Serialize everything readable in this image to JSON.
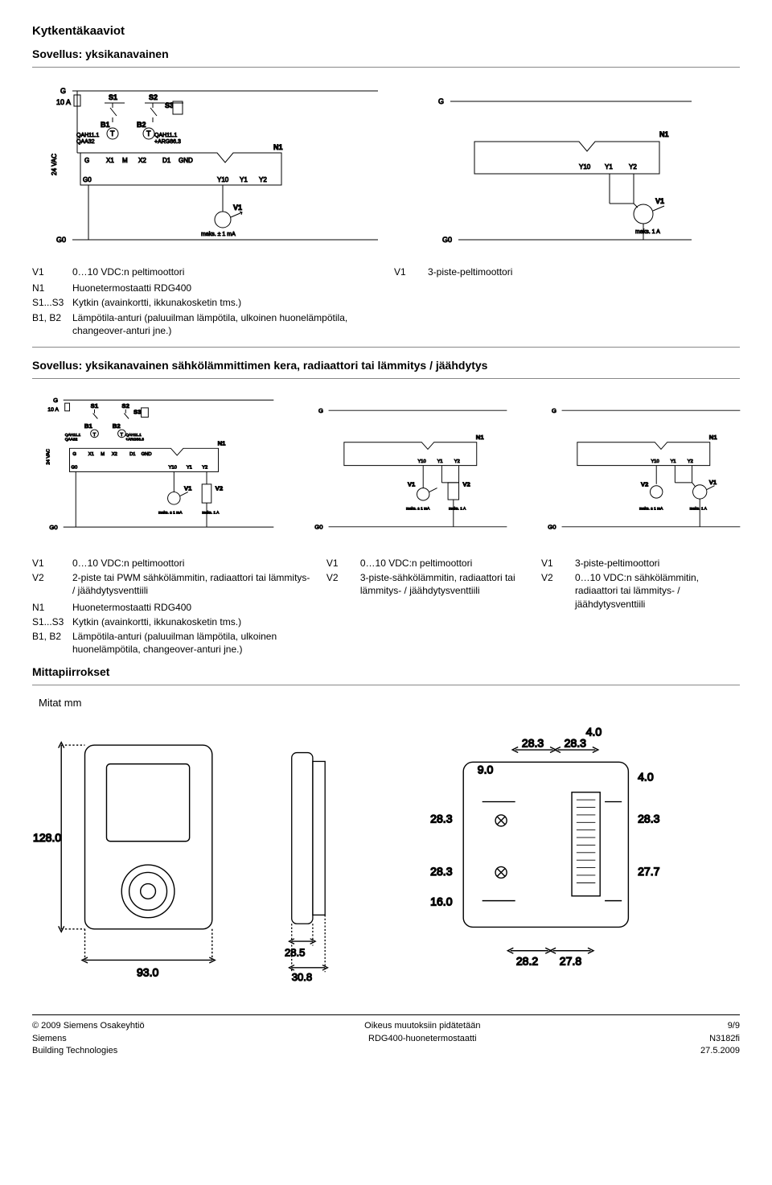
{
  "page": {
    "title": "Kytkentäkaaviot",
    "app1_title": "Sovellus: yksikanavainen",
    "app2_title": "Sovellus: yksikanavainen sähkölämmittimen kera, radiaattori tai lämmitys / jäähdytys",
    "dimensions_title": "Mittapiirrokset",
    "dimensions_sub": "Mitat mm"
  },
  "schematic_labels": {
    "G": "G",
    "G0": "G0",
    "S1": "S1",
    "S2": "S2",
    "S3": "S3",
    "B1": "B1",
    "B2": "B2",
    "N1": "N1",
    "T": "T",
    "QAH": "QAH11.1",
    "QAA": "QAA32",
    "ARG": "+ARG86.3",
    "X1": "X1",
    "X2": "X2",
    "M": "M",
    "D1": "D1",
    "GND": "GND",
    "Y10": "Y10",
    "Y1": "Y1",
    "Y2": "Y2",
    "V1": "V1",
    "V2": "V2",
    "max1ma": "maks. ± 1 mA",
    "max1a": "maks. 1 A",
    "t10a": "10 A",
    "v24": "24 VAC"
  },
  "legend_app1_left": [
    {
      "k": "V1",
      "v": "0…10 VDC:n peltimoottori"
    },
    {
      "k": "",
      "v": ""
    },
    {
      "k": "N1",
      "v": "Huonetermostaatti RDG400"
    },
    {
      "k": "S1...S3",
      "v": "Kytkin (avainkortti, ikkunakosketin tms.)"
    },
    {
      "k": "B1, B2",
      "v": "Lämpötila-anturi (paluuilman lämpötila, ulkoinen huonelämpötila, changeover-anturi jne.)"
    }
  ],
  "legend_app1_right": [
    {
      "k": "V1",
      "v": "3-piste-peltimoottori"
    }
  ],
  "legend_app2_col1": [
    {
      "k": "V1",
      "v": "0…10 VDC:n peltimoottori"
    },
    {
      "k": "V2",
      "v": "2-piste tai PWM sähkölämmitin, radiaattori tai lämmitys- / jäähdytysventtiili"
    },
    {
      "k": "",
      "v": ""
    },
    {
      "k": "N1",
      "v": "Huonetermostaatti RDG400"
    },
    {
      "k": "S1...S3",
      "v": "Kytkin (avainkortti, ikkunakosketin tms.)"
    },
    {
      "k": "B1, B2",
      "v": "Lämpötila-anturi (paluuilman lämpötila, ulkoinen huonelämpötila, changeover-anturi jne.)"
    }
  ],
  "legend_app2_col2": [
    {
      "k": "V1",
      "v": "0…10 VDC:n peltimoottori"
    },
    {
      "k": "V2",
      "v": "3-piste-sähkölämmitin, radiaattori tai lämmitys- / jäähdytysventtiili"
    }
  ],
  "legend_app2_col3": [
    {
      "k": "V1",
      "v": "3-piste-peltimoottori"
    },
    {
      "k": "V2",
      "v": "0…10 VDC:n sähkölämmitin, radiaattori tai lämmitys- / jäähdytysventtiili"
    }
  ],
  "dims": {
    "front_h": "128.0",
    "front_w": "93.0",
    "side_d": "28.5",
    "side_d2": "30.8",
    "back_tab": "4.0",
    "back_l1": "28.3",
    "back_l2": "28.3",
    "back_top": "9.0",
    "back_r_tab": "4.0",
    "back_left_1": "28.3",
    "back_right_1": "28.3",
    "back_left_2": "28.3",
    "back_right_2": "27.7",
    "back_left_3": "16.0",
    "back_bot_1": "28.2",
    "back_bot_2": "27.8"
  },
  "footer": {
    "copyright": "© 2009 Siemens Osakeyhtiö",
    "center": "Oikeus muutoksiin pidätetään",
    "page": "9/9",
    "company": "Siemens",
    "division": "Building Technologies",
    "product": "RDG400-huonetermostaatti",
    "docnum": "N3182fi",
    "date": "27.5.2009"
  },
  "style": {
    "stroke": "#000000",
    "fill": "#ffffff",
    "font": "Arial",
    "label_fs": 9,
    "title_fs": 15
  }
}
